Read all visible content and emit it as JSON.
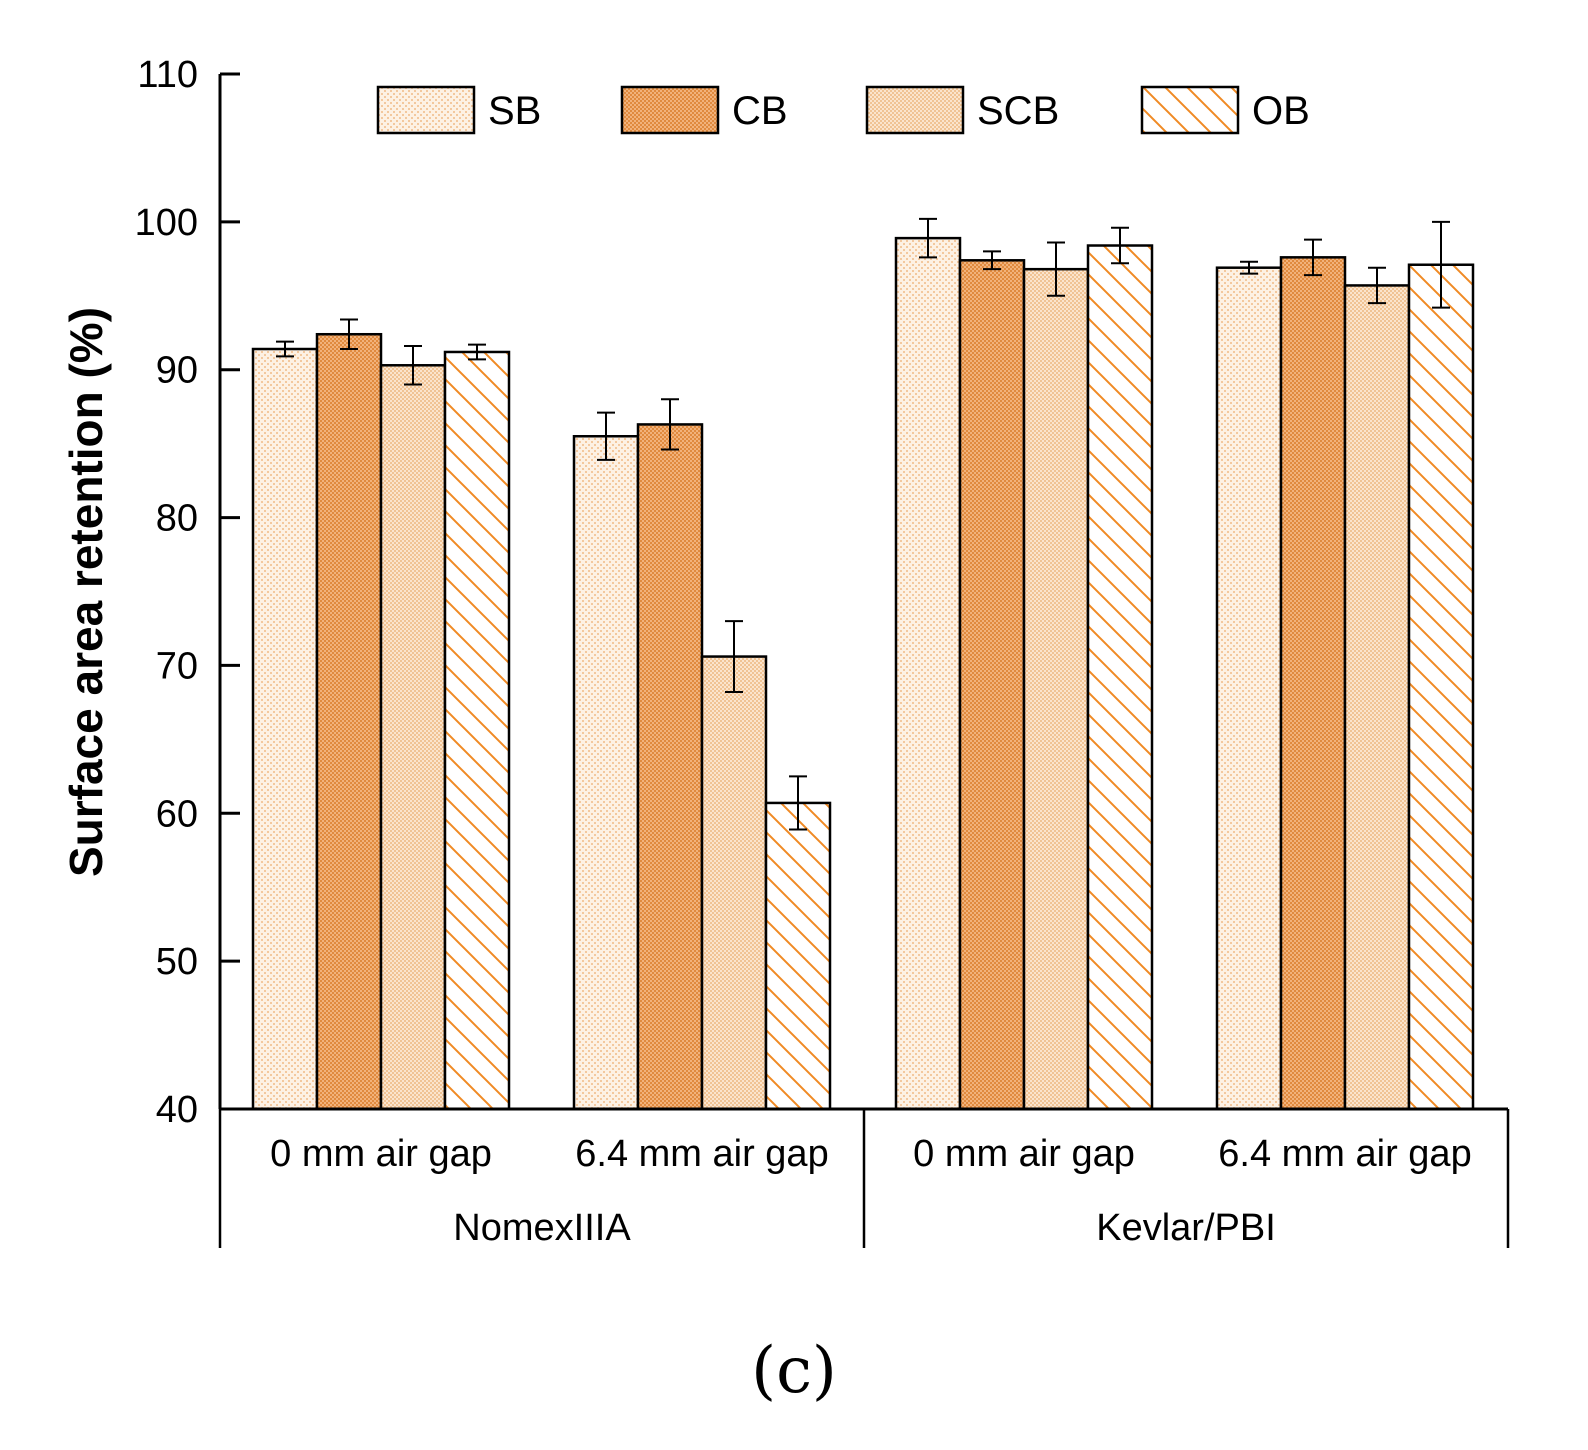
{
  "chart_data": {
    "type": "bar",
    "title": "",
    "xlabel": "",
    "ylabel": "Surface area retention (%)",
    "ylim": [
      40,
      110
    ],
    "yticks": [
      40,
      50,
      60,
      70,
      80,
      90,
      100,
      110
    ],
    "groups": [
      {
        "name": "NomexIIIA",
        "categories": [
          "0 mm air gap",
          "6.4 mm air gap"
        ]
      },
      {
        "name": "Kevlar/PBI",
        "categories": [
          "0 mm air gap",
          "6.4 mm air gap"
        ]
      }
    ],
    "categories": [
      "0 mm air gap",
      "6.4 mm air gap",
      "0 mm air gap",
      "6.4 mm air gap"
    ],
    "series": [
      {
        "name": "SB",
        "values": [
          91.4,
          85.5,
          98.9,
          96.9
        ],
        "errors": [
          0.5,
          1.6,
          1.3,
          0.4
        ]
      },
      {
        "name": "CB",
        "values": [
          92.4,
          86.3,
          97.4,
          97.6
        ],
        "errors": [
          1.0,
          1.7,
          0.6,
          1.2
        ]
      },
      {
        "name": "SCB",
        "values": [
          90.3,
          70.6,
          96.8,
          95.7
        ],
        "errors": [
          1.3,
          2.4,
          1.8,
          1.2
        ]
      },
      {
        "name": "OB",
        "values": [
          91.2,
          60.7,
          98.4,
          97.1
        ],
        "errors": [
          0.5,
          1.8,
          1.2,
          2.9
        ]
      }
    ],
    "legend": "top",
    "grid": false
  },
  "colors": {
    "SB": "#fce6cf",
    "CB": "#f0a868",
    "SCB": "#f8dcc0",
    "OB": "#f08a24",
    "axis": "#000000"
  },
  "panel_label": "(c)"
}
